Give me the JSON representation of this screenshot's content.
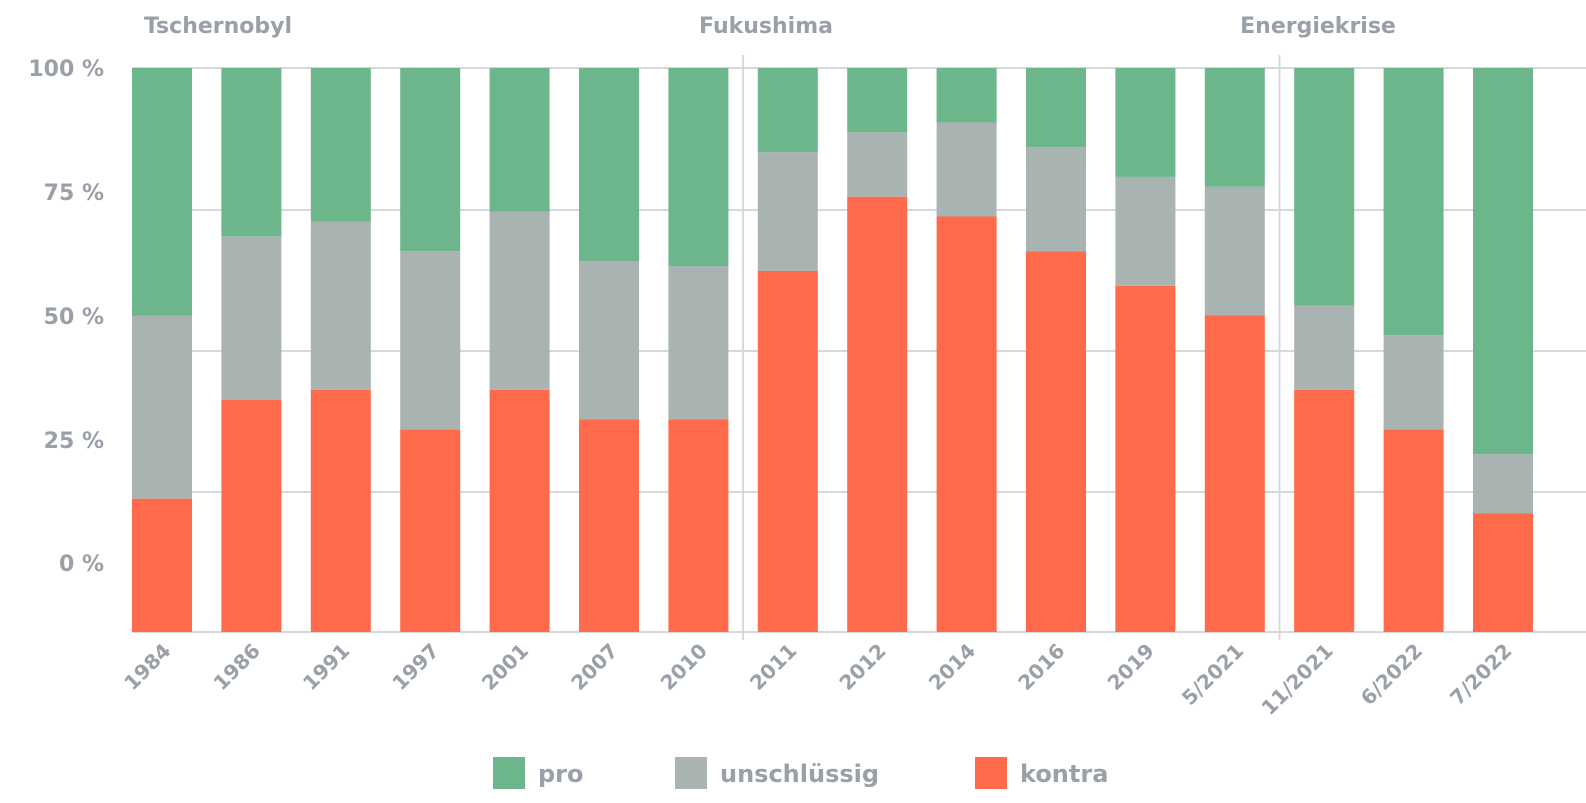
{
  "chart_data": {
    "type": "bar",
    "stacked": true,
    "categories": [
      "1984",
      "1986",
      "1991",
      "1997",
      "2001",
      "2007",
      "2010",
      "2011",
      "2012",
      "2014",
      "2016",
      "2019",
      "5/2021",
      "11/2021",
      "6/2022",
      "7/2022"
    ],
    "series": [
      {
        "name": "kontra",
        "color": "#ff6b4a",
        "values": [
          13,
          33,
          35,
          27,
          35,
          29,
          29,
          59,
          74,
          70,
          63,
          56,
          50,
          35,
          27,
          10
        ]
      },
      {
        "name": "unschlüssig",
        "color": "#a9b4b2",
        "values": [
          37,
          33,
          34,
          36,
          36,
          32,
          31,
          24,
          13,
          19,
          21,
          22,
          26,
          17,
          19,
          12
        ]
      },
      {
        "name": "pro",
        "color": "#6db58b",
        "values": [
          50,
          34,
          31,
          37,
          29,
          39,
          40,
          17,
          13,
          11,
          16,
          22,
          24,
          48,
          54,
          78
        ]
      }
    ],
    "yticks": [
      "100 %",
      "75 %",
      "50 %",
      "25 %",
      "0 %"
    ],
    "ylim": [
      0,
      100
    ],
    "eras": [
      {
        "label": "Tschernobyl",
        "start_index": 0
      },
      {
        "label": "Fukushima",
        "start_index": 7
      },
      {
        "label": "Energiekrise",
        "start_index": 13
      }
    ],
    "legend": {
      "placement": "bottom",
      "items": [
        {
          "label": "pro",
          "color": "#6db58b"
        },
        {
          "label": "unschlüssig",
          "color": "#a9b4b2"
        },
        {
          "label": "kontra",
          "color": "#ff6b4a"
        }
      ]
    },
    "grid": true
  }
}
